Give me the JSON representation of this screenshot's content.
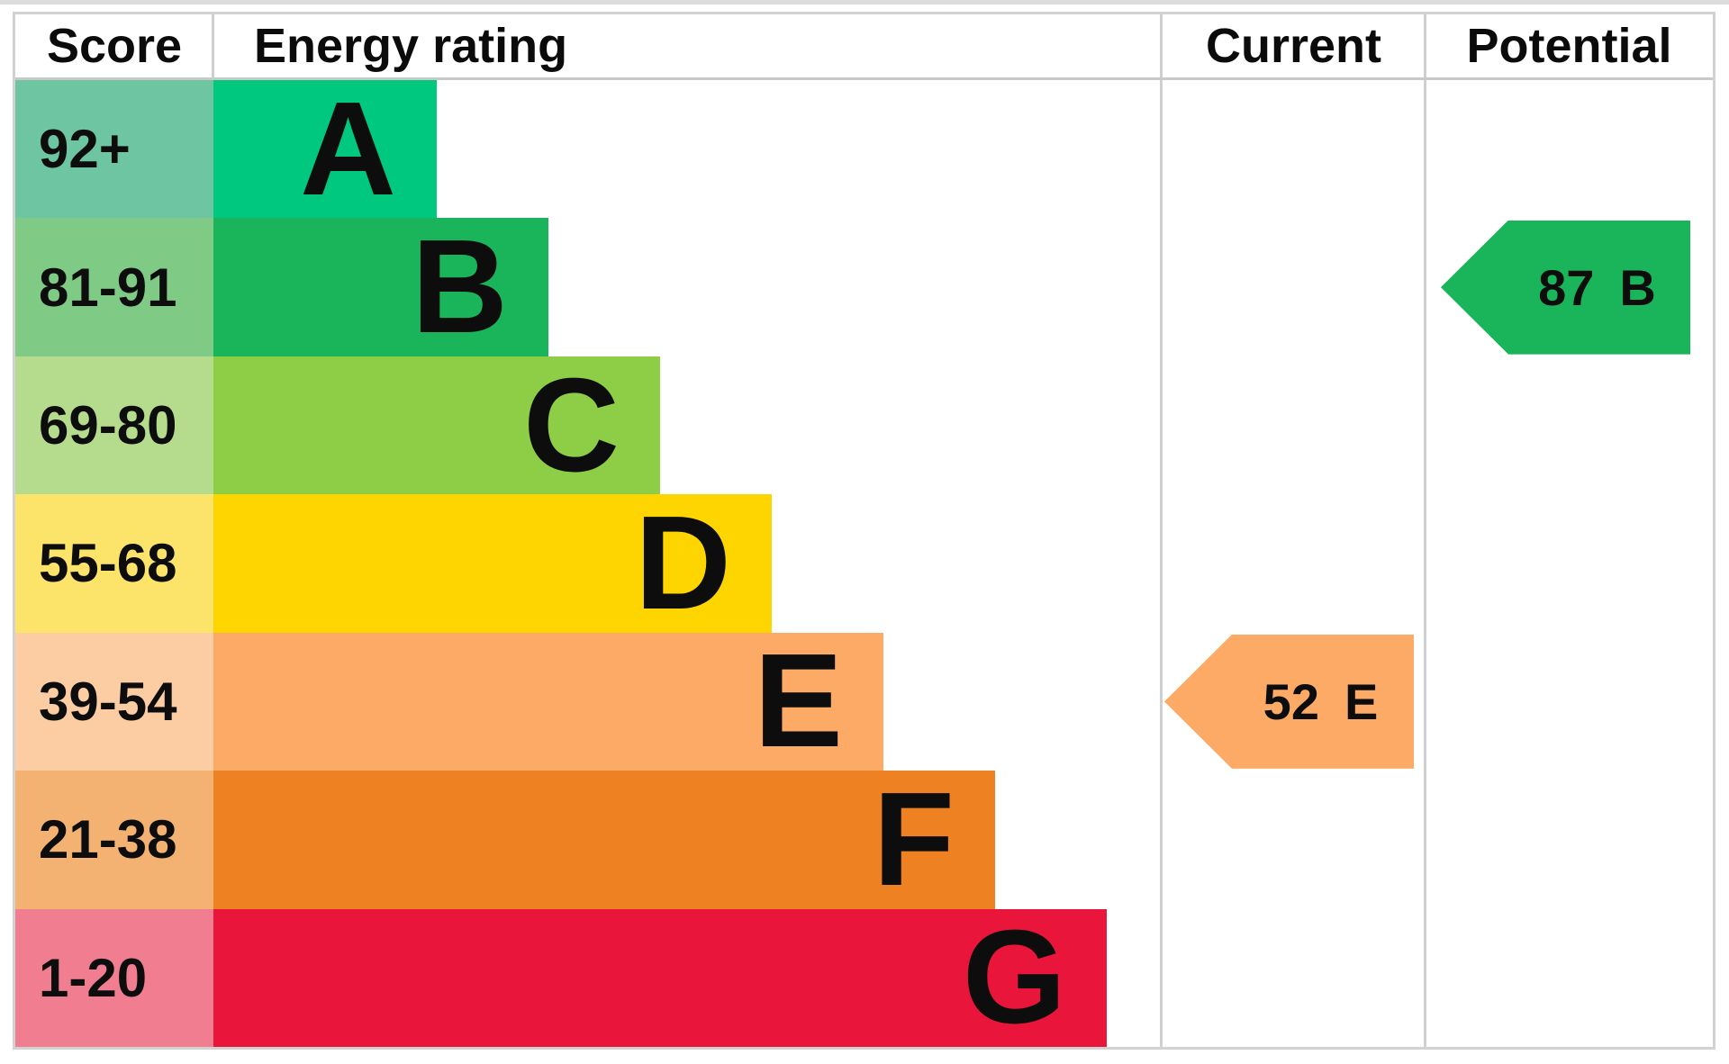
{
  "chart_data": {
    "type": "bar",
    "subtype": "epc-energy-rating-chart",
    "headers": {
      "score": "Score",
      "energy_rating": "Energy rating",
      "current": "Current",
      "potential": "Potential"
    },
    "bands": [
      {
        "band": "A",
        "score_range": "92+",
        "color": "#00c87e",
        "tint": "#6ec5a2"
      },
      {
        "band": "B",
        "score_range": "81-91",
        "color": "#1ab45a",
        "tint": "#7fca85"
      },
      {
        "band": "C",
        "score_range": "69-80",
        "color": "#8dce46",
        "tint": "#b5dc8d"
      },
      {
        "band": "D",
        "score_range": "55-68",
        "color": "#ffd500",
        "tint": "#fce46a"
      },
      {
        "band": "E",
        "score_range": "39-54",
        "color": "#fcaa65",
        "tint": "#fccda3"
      },
      {
        "band": "F",
        "score_range": "21-38",
        "color": "#ee8122",
        "tint": "#f4b272"
      },
      {
        "band": "G",
        "score_range": "1-20",
        "color": "#e9153b",
        "tint": "#f17d90"
      }
    ],
    "current": {
      "score": 52,
      "band": "E"
    },
    "potential": {
      "score": 87,
      "band": "B"
    },
    "layout_hints": {
      "legend": "none",
      "grid": "column dividers only",
      "arrow_direction": "left"
    }
  }
}
